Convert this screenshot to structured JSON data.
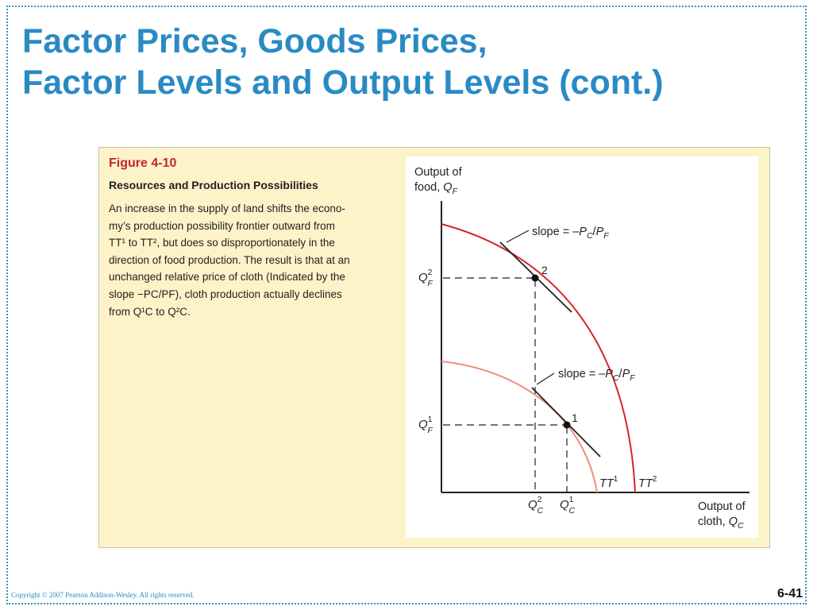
{
  "slide": {
    "title_line1": "Factor Prices, Goods Prices,",
    "title_line2": "Factor Levels and Output Levels (cont.)",
    "copyright": "Copyright © 2007 Pearson Addison-Wesley. All rights reserved.",
    "page_number": "6-41"
  },
  "figure": {
    "label": "Figure 4-10",
    "title": "Resources and Production Possibilities",
    "body_lines": [
      "An increase in the supply of land shifts the econo-",
      "my’s production possibility frontier outward from",
      "TT¹ to TT², but does so disproportionately in the",
      "direction of food production. The result is that at an",
      "unchanged relative price of cloth (Indicated by the",
      "slope −PC/PF), cloth production actually declines",
      "from Q¹C to Q²C."
    ]
  },
  "diagram": {
    "y_axis_label_line1": "Output of",
    "y_axis_label_line2_text": "food, ",
    "y_axis_label_line2_var": "Q",
    "y_axis_label_line2_sub": "F",
    "x_axis_label_line1": "Output of",
    "x_axis_label_line2_text": "cloth, ",
    "x_axis_label_line2_var": "Q",
    "x_axis_label_line2_sub": "C",
    "slope_label_upper_prefix": "slope = –",
    "slope_label_lower_prefix": "slope = –",
    "slope_p": "P",
    "slope_sub_c": "C",
    "slope_slash": "/",
    "slope_sub_f": "F",
    "curve_tt1": "TT",
    "curve_tt1_sup": "1",
    "curve_tt2": "TT",
    "curve_tt2_sup": "2",
    "point_1": "1",
    "point_2": "2",
    "q_letter": "Q",
    "sub_f": "F",
    "sub_c": "C",
    "sup_1": "1",
    "sup_2": "2",
    "colors": {
      "tt2_curve": "#d3262b",
      "tt1_curve": "#ee8f7a",
      "axis": "#222222"
    }
  }
}
